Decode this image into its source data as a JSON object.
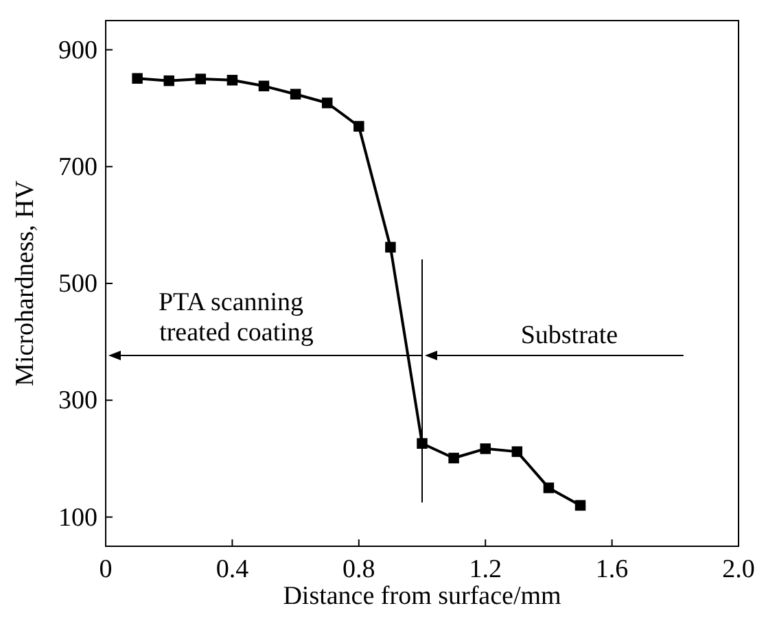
{
  "chart_data": {
    "type": "line",
    "xlabel": "Distance from surface/mm",
    "ylabel": "Microhardness, HV",
    "x": [
      0.1,
      0.2,
      0.3,
      0.4,
      0.5,
      0.6,
      0.7,
      0.8,
      0.9,
      1.0,
      1.1,
      1.2,
      1.3,
      1.4,
      1.5
    ],
    "series": [
      {
        "color": "#000000",
        "values": [
          851,
          847,
          850,
          848,
          838,
          824,
          809,
          769,
          562,
          226,
          201,
          217,
          212,
          150,
          120
        ]
      }
    ],
    "xlim": [
      0,
      2.0
    ],
    "xticks": [
      0,
      0.4,
      0.8,
      1.2,
      1.6,
      {
        "value": 2.0,
        "label": "2.0"
      }
    ],
    "ylim": [
      50,
      950
    ],
    "yticks": [
      100,
      300,
      500,
      700,
      900
    ],
    "marker": "square",
    "line_style": "solid",
    "grid": false,
    "ref_lines": [
      {
        "axis": "x",
        "value": 1.0,
        "color": "#000000"
      }
    ],
    "annotations": [
      "PTA scanning\ntreated coating",
      "Substrate"
    ]
  }
}
